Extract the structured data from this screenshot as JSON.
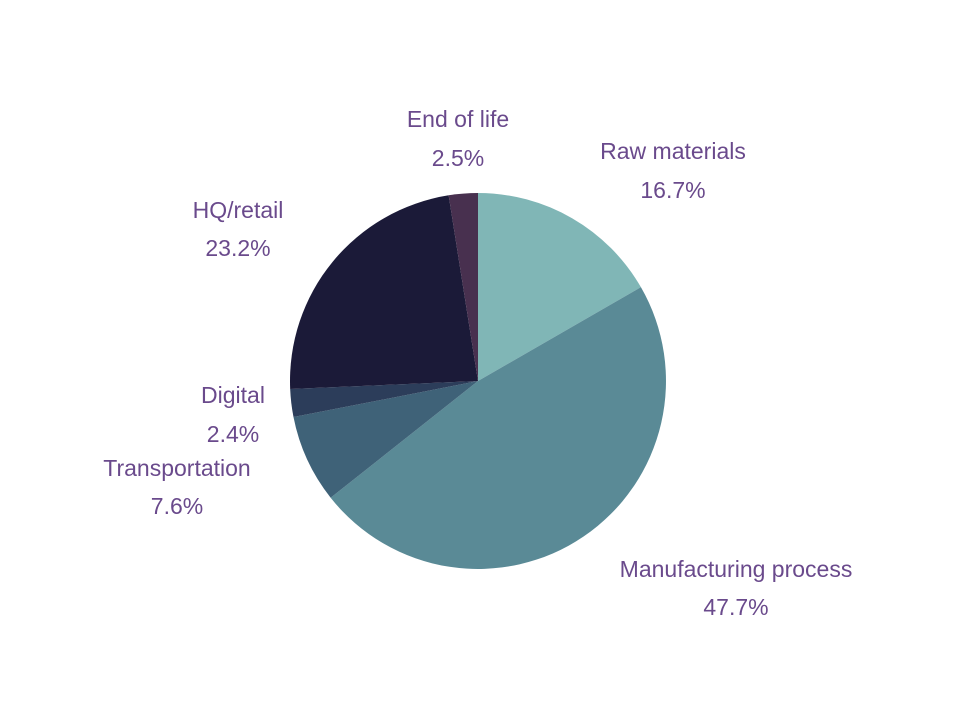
{
  "chart_data": {
    "type": "pie",
    "start_angle_deg": 0,
    "direction": "clockwise",
    "slices": [
      {
        "name": "Raw materials",
        "value": 16.7,
        "label": "16.7%",
        "color": "#80b6b6"
      },
      {
        "name": "Manufacturing process",
        "value": 47.7,
        "label": "47.7%",
        "color": "#5a8a96"
      },
      {
        "name": "Transportation",
        "value": 7.6,
        "label": "7.6%",
        "color": "#3f6278"
      },
      {
        "name": "Digital",
        "value": 2.4,
        "label": "2.4%",
        "color": "#2c3d5a"
      },
      {
        "name": "HQ/retail",
        "value": 23.2,
        "label": "23.2%",
        "color": "#1b1a38"
      },
      {
        "name": "End of life",
        "value": 2.5,
        "label": "2.5%",
        "color": "#48304f"
      }
    ],
    "label_color": "#6a4a8c"
  }
}
